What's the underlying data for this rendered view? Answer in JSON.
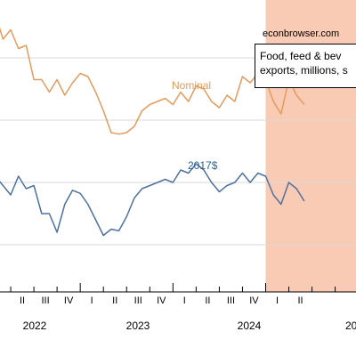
{
  "chart_data": {
    "type": "line",
    "title": "Food, feed & beverage exports, millions, s",
    "title_lines": [
      "Food, feed & bev",
      "exports, millions, s"
    ],
    "source": "econbrowser.com",
    "x_labels": {
      "quarters": [
        "II",
        "III",
        "IV",
        "I",
        "II",
        "III",
        "IV",
        "I",
        "II",
        "III",
        "IV",
        "I",
        "II"
      ],
      "years": [
        "2022",
        "2023",
        "2024",
        "20"
      ]
    },
    "recession_shading": {
      "from": "2025-01",
      "to": "2025-05",
      "color": "#f9cbb4"
    },
    "grid": true,
    "series": [
      {
        "name": "Nominal",
        "color": "#e49b5c",
        "label_position": "upper-middle",
        "x": [
          "2022-01",
          "2022-02",
          "2022-03",
          "2022-04",
          "2022-05",
          "2022-06",
          "2022-07",
          "2022-08",
          "2022-09",
          "2022-10",
          "2022-11",
          "2022-12",
          "2023-01",
          "2023-02",
          "2023-03",
          "2023-04",
          "2023-05",
          "2023-06",
          "2023-07",
          "2023-08",
          "2023-09",
          "2023-10",
          "2023-11",
          "2023-12",
          "2024-01",
          "2024-02",
          "2024-03",
          "2024-04",
          "2024-05",
          "2024-06",
          "2024-07",
          "2024-08",
          "2024-09",
          "2024-10",
          "2024-11",
          "2024-12",
          "2025-01",
          "2025-02",
          "2025-03",
          "2025-04",
          "2025-05",
          "2025-06"
        ],
        "values": [
          16.2,
          17.4,
          16.6,
          16.9,
          16.3,
          16.4,
          15.3,
          15.3,
          14.9,
          15.3,
          14.8,
          15.2,
          15.5,
          15.4,
          14.9,
          14.3,
          13.6,
          13.55,
          13.6,
          13.8,
          14.3,
          14.5,
          14.6,
          14.7,
          14.5,
          14.9,
          14.6,
          15.1,
          15.0,
          14.6,
          14.4,
          14.8,
          14.6,
          15.4,
          15.2,
          15.5,
          15.3,
          14.6,
          14.2,
          15.3,
          14.8,
          14.5
        ]
      },
      {
        "name": "2017$",
        "color": "#4d71a0",
        "label_position": "middle",
        "x": [
          "2022-01",
          "2022-02",
          "2022-03",
          "2022-04",
          "2022-05",
          "2022-06",
          "2022-07",
          "2022-08",
          "2022-09",
          "2022-10",
          "2022-11",
          "2022-12",
          "2023-01",
          "2023-02",
          "2023-03",
          "2023-04",
          "2023-05",
          "2023-06",
          "2023-07",
          "2023-08",
          "2023-09",
          "2023-10",
          "2023-11",
          "2023-12",
          "2024-01",
          "2024-02",
          "2024-03",
          "2024-04",
          "2024-05",
          "2024-06",
          "2024-07",
          "2024-08",
          "2024-09",
          "2024-10",
          "2024-11",
          "2024-12",
          "2025-01",
          "2025-02",
          "2025-03",
          "2025-04",
          "2025-05",
          "2025-06"
        ],
        "values": [
          11.6,
          12.2,
          11.9,
          11.6,
          12.2,
          11.8,
          11.9,
          11.0,
          11.0,
          10.4,
          11.3,
          11.75,
          11.65,
          11.3,
          10.8,
          10.3,
          10.5,
          10.45,
          10.9,
          11.5,
          11.8,
          11.9,
          12.0,
          12.1,
          12.0,
          12.4,
          12.3,
          12.6,
          12.4,
          12.0,
          11.7,
          11.9,
          12.0,
          12.3,
          12.0,
          12.3,
          12.2,
          11.6,
          11.3,
          12.0,
          11.8,
          11.4
        ]
      }
    ]
  }
}
